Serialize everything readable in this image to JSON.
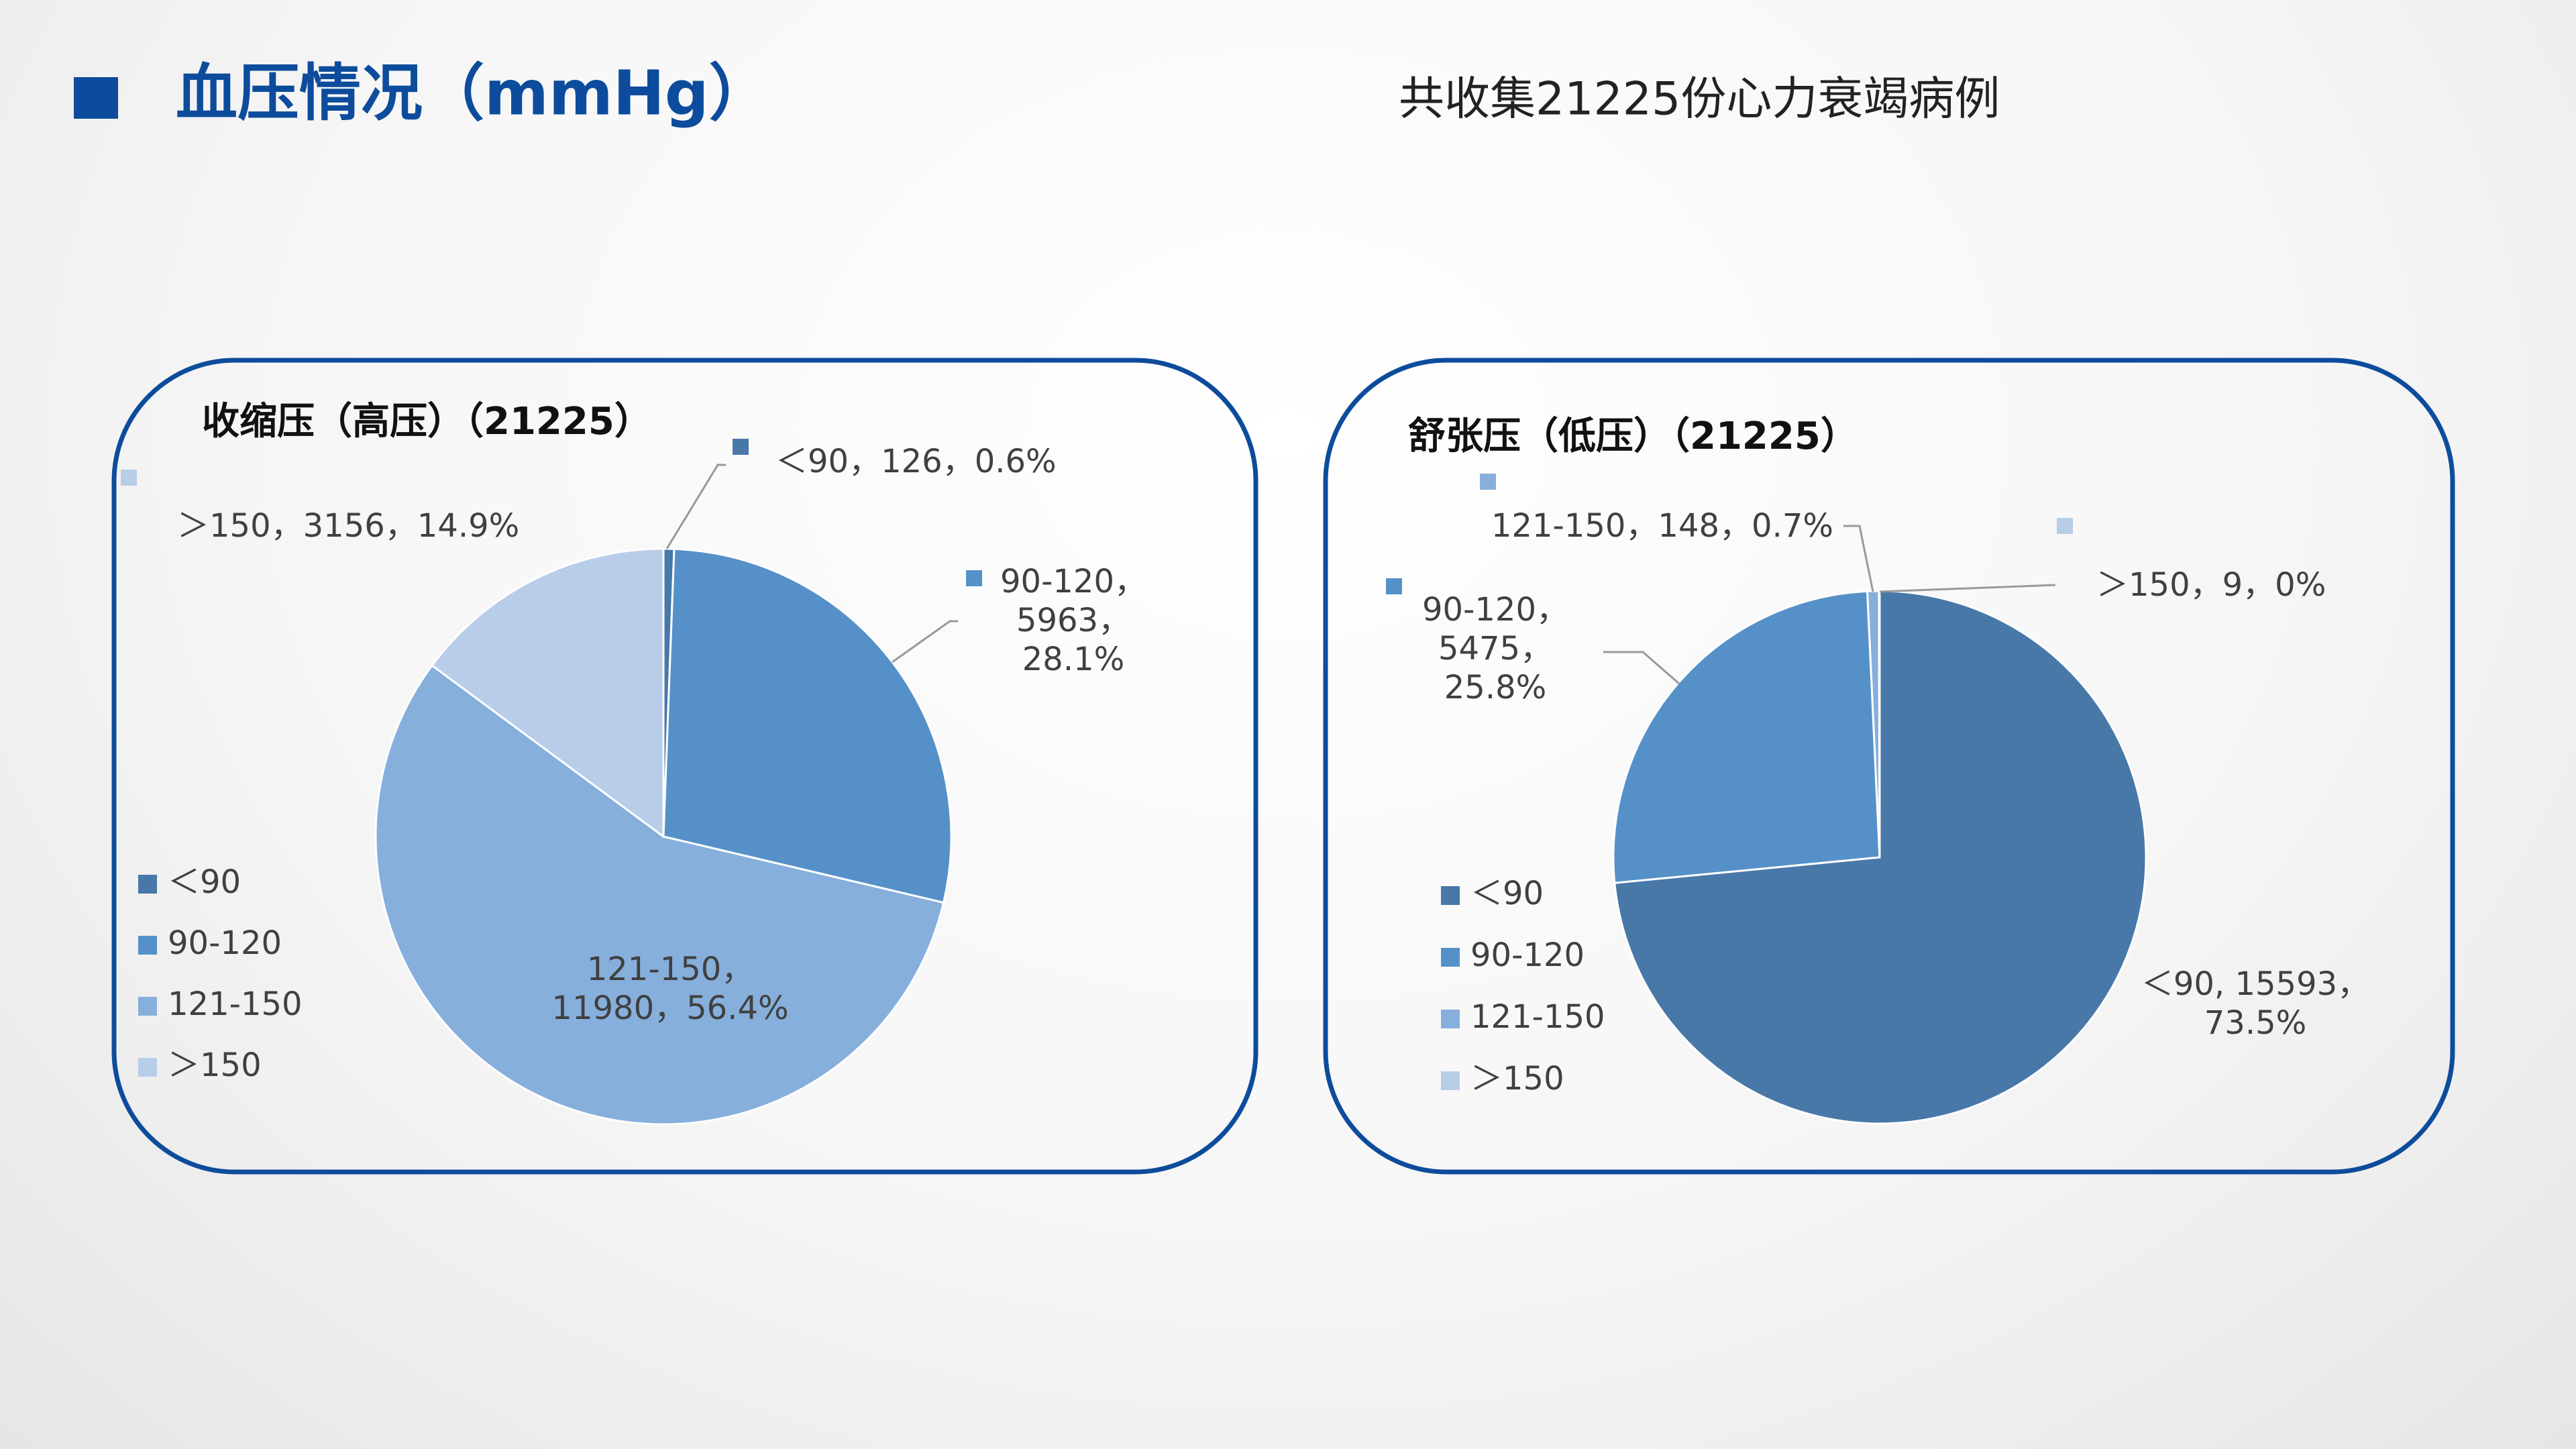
{
  "header": {
    "title": "血压情况（mmHg）",
    "subtitle": "共收集21225份心力衰竭病例"
  },
  "chart_data": [
    {
      "type": "pie",
      "title": "收缩压（高压）（21225）",
      "categories": [
        "＜90",
        "90-120",
        "121-150",
        "＞150"
      ],
      "values": [
        126,
        5963,
        11980,
        3156
      ],
      "value_labels": [
        "＜90，126，0.6%",
        "90-120，\n5963，\n28.1%",
        "121-150，\n11980，56.4%",
        "＞150，3156，14.9%"
      ],
      "colors": [
        "#4878a8",
        "#5591c8",
        "#86afdc",
        "#b8cde8"
      ]
    },
    {
      "type": "pie",
      "title": "舒张压（低压）（21225）",
      "categories": [
        "＜90",
        "90-120",
        "121-150",
        "＞150"
      ],
      "values": [
        15593,
        5475,
        148,
        9
      ],
      "value_labels": [
        "＜90, 15593，\n73.5%",
        "90-120，\n5475，\n25.8%",
        "121-150，148，0.7%",
        "＞150，9，0%"
      ],
      "colors": [
        "#4878a8",
        "#5591c8",
        "#86afdc",
        "#b8cde8"
      ]
    }
  ]
}
